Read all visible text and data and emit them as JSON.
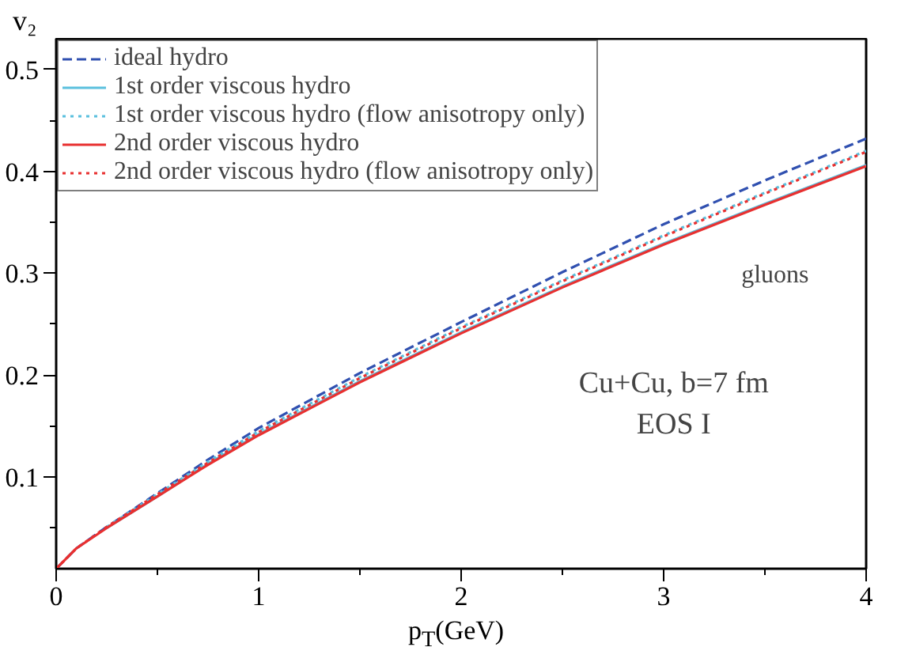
{
  "chart_data": {
    "type": "line",
    "xlabel": "p$_{T}$(GeV)",
    "ylabel": "v₂",
    "xlim": [
      0,
      4
    ],
    "ylim": [
      0.01,
      0.53
    ],
    "xticks": [
      0,
      {
        "value": 0.5,
        "label": null
      },
      1,
      {
        "value": 1.5,
        "label": null
      },
      2,
      {
        "value": 2.5,
        "label": null
      },
      3,
      {
        "value": 3.5,
        "label": null
      },
      4
    ],
    "yticks": [
      {
        "value": 0.05,
        "label": null
      },
      0.1,
      {
        "value": 0.15,
        "label": null
      },
      0.2,
      {
        "value": 0.25,
        "label": null
      },
      0.3,
      {
        "value": 0.35,
        "label": null
      },
      0.4,
      {
        "value": 0.45,
        "label": null
      },
      0.5
    ],
    "x": [
      0,
      0.1,
      0.25,
      0.5,
      0.75,
      1,
      1.5,
      2,
      2.5,
      3,
      3.5,
      4
    ],
    "series": [
      {
        "name": "ideal hydro",
        "color": "#3050b0",
        "line_style": "dashed",
        "values": [
          0.01,
          0.03,
          0.051,
          0.084,
          0.117,
          0.148,
          0.202,
          0.252,
          0.301,
          0.348,
          0.391,
          0.432
        ]
      },
      {
        "name": "1st order viscous hydro",
        "color": "#5bc0de",
        "line_style": "solid",
        "values": [
          null,
          null,
          0.05,
          0.081,
          0.113,
          0.142,
          0.194,
          0.242,
          0.287,
          0.329,
          0.368,
          0.406
        ]
      },
      {
        "name": "1st order viscous hydro (flow anisotropy only)",
        "color": "#5bc0de",
        "line_style": "dotted",
        "values": [
          null,
          null,
          0.051,
          0.083,
          0.115,
          0.145,
          0.198,
          0.247,
          0.293,
          0.337,
          0.379,
          0.42
        ]
      },
      {
        "name": "2nd order viscous hydro",
        "color": "#e83030",
        "line_style": "solid",
        "values": [
          0.01,
          0.03,
          0.05,
          0.081,
          0.112,
          0.141,
          0.193,
          0.241,
          0.286,
          0.328,
          0.367,
          0.405
        ]
      },
      {
        "name": "2nd order viscous hydro (flow anisotropy only)",
        "color": "#e83030",
        "line_style": "dotted",
        "values": [
          0.01,
          0.03,
          0.051,
          0.083,
          0.114,
          0.144,
          0.197,
          0.246,
          0.292,
          0.336,
          0.378,
          0.419
        ]
      }
    ],
    "legend": "top left",
    "grid": false,
    "annotations": [
      "gluons",
      "Cu+Cu, b=7 fm",
      "EOS I"
    ]
  }
}
